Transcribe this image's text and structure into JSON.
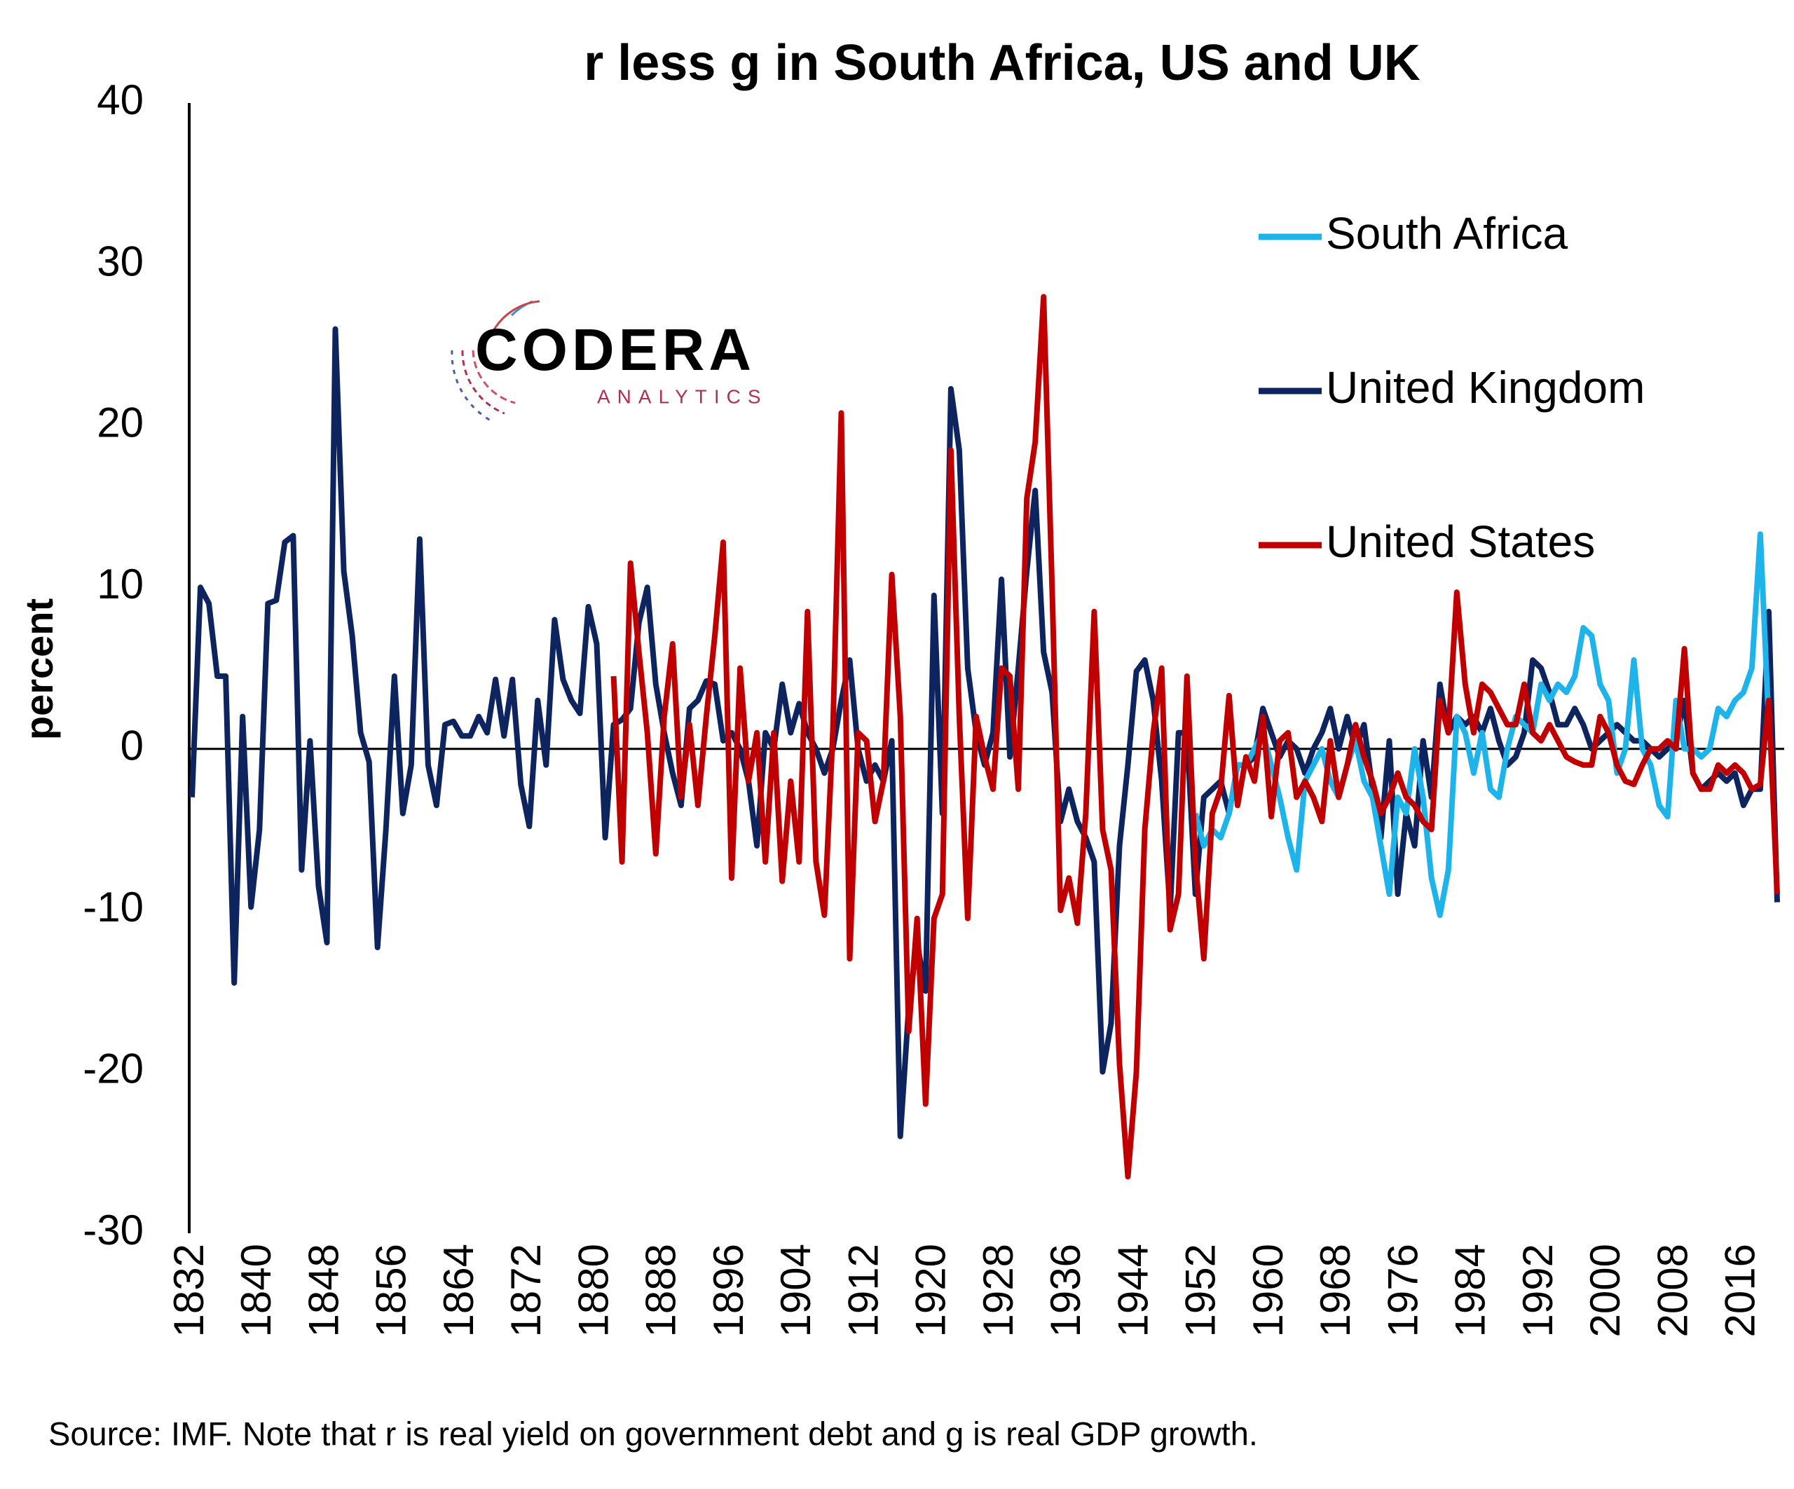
{
  "chart_data": {
    "type": "line",
    "title": "r less g in South Africa, US and UK",
    "y_label": "percent",
    "source": "Source: IMF. Note that r is real yield on government debt and g is real GDP growth.",
    "logo_text": "CODERA",
    "logo_subtext": "ANALYTICS",
    "legend": "top-right",
    "xlim": [
      1832,
      2020
    ],
    "ylim": [
      -30,
      40
    ],
    "yticks": [
      -30,
      -20,
      -10,
      0,
      10,
      20,
      30,
      40
    ],
    "xticks": [
      1832,
      1840,
      1848,
      1856,
      1864,
      1872,
      1880,
      1888,
      1896,
      1904,
      1912,
      1920,
      1928,
      1936,
      1944,
      1952,
      1960,
      1968,
      1976,
      1984,
      1992,
      2000,
      2008,
      2016
    ],
    "x": [
      1832,
      1833,
      1834,
      1835,
      1836,
      1837,
      1838,
      1839,
      1840,
      1841,
      1842,
      1843,
      1844,
      1845,
      1846,
      1847,
      1848,
      1849,
      1850,
      1851,
      1852,
      1853,
      1854,
      1855,
      1856,
      1857,
      1858,
      1859,
      1860,
      1861,
      1862,
      1863,
      1864,
      1865,
      1866,
      1867,
      1868,
      1869,
      1870,
      1871,
      1872,
      1873,
      1874,
      1875,
      1876,
      1877,
      1878,
      1879,
      1880,
      1881,
      1882,
      1883,
      1884,
      1885,
      1886,
      1887,
      1888,
      1889,
      1890,
      1891,
      1892,
      1893,
      1894,
      1895,
      1896,
      1897,
      1898,
      1899,
      1900,
      1901,
      1902,
      1903,
      1904,
      1905,
      1906,
      1907,
      1908,
      1909,
      1910,
      1911,
      1912,
      1913,
      1914,
      1915,
      1916,
      1917,
      1918,
      1919,
      1920,
      1921,
      1922,
      1923,
      1924,
      1925,
      1926,
      1927,
      1928,
      1929,
      1930,
      1931,
      1932,
      1933,
      1934,
      1935,
      1936,
      1937,
      1938,
      1939,
      1940,
      1941,
      1942,
      1943,
      1944,
      1945,
      1946,
      1947,
      1948,
      1949,
      1950,
      1951,
      1952,
      1953,
      1954,
      1955,
      1956,
      1957,
      1958,
      1959,
      1960,
      1961,
      1962,
      1963,
      1964,
      1965,
      1966,
      1967,
      1968,
      1969,
      1970,
      1971,
      1972,
      1973,
      1974,
      1975,
      1976,
      1977,
      1978,
      1979,
      1980,
      1981,
      1982,
      1983,
      1984,
      1985,
      1986,
      1987,
      1988,
      1989,
      1990,
      1991,
      1992,
      1993,
      1994,
      1995,
      1996,
      1997,
      1998,
      1999,
      2000,
      2001,
      2002,
      2003,
      2004,
      2005,
      2006,
      2007,
      2008,
      2009,
      2010,
      2011,
      2012,
      2013,
      2014,
      2015,
      2016,
      2017,
      2018,
      2019,
      2020
    ],
    "series": [
      {
        "name": "South Africa",
        "color": "#1eb4ea",
        "values": [
          null,
          null,
          null,
          null,
          null,
          null,
          null,
          null,
          null,
          null,
          null,
          null,
          null,
          null,
          null,
          null,
          null,
          null,
          null,
          null,
          null,
          null,
          null,
          null,
          null,
          null,
          null,
          null,
          null,
          null,
          null,
          null,
          null,
          null,
          null,
          null,
          null,
          null,
          null,
          null,
          null,
          null,
          null,
          null,
          null,
          null,
          null,
          null,
          null,
          null,
          null,
          null,
          null,
          null,
          null,
          null,
          null,
          null,
          null,
          null,
          null,
          null,
          null,
          null,
          null,
          null,
          null,
          null,
          null,
          null,
          null,
          null,
          null,
          null,
          null,
          null,
          null,
          null,
          null,
          null,
          null,
          null,
          null,
          null,
          null,
          null,
          null,
          null,
          null,
          null,
          null,
          null,
          null,
          null,
          null,
          null,
          null,
          null,
          null,
          null,
          null,
          null,
          null,
          null,
          null,
          null,
          null,
          null,
          null,
          null,
          null,
          null,
          null,
          null,
          null,
          null,
          null,
          null,
          null,
          -4,
          -6,
          -5,
          -5.5,
          -4,
          -1,
          -1,
          0,
          1,
          -1,
          -3,
          -5.5,
          -7.5,
          -2,
          -1,
          0,
          -2,
          -3,
          -1,
          0.5,
          -2,
          -3,
          -6,
          -9,
          -3,
          -4,
          0,
          -3,
          -8,
          -10.3,
          -7.5,
          2,
          1,
          -1.5,
          1,
          -2.5,
          -3,
          0,
          2,
          1.5,
          1,
          4,
          3,
          4,
          3.5,
          4.5,
          7.5,
          7,
          4,
          3,
          -1.5,
          0,
          5.5,
          0,
          -1,
          -3.5,
          -4.2,
          3,
          0,
          0,
          -0.5,
          0,
          2.5,
          2,
          3,
          3.5,
          5,
          13.3,
          1.5,
          null
        ]
      },
      {
        "name": "United Kingdom",
        "color": "#0d245e",
        "values": [
          -3,
          10,
          9,
          4.5,
          4.5,
          -14.5,
          2,
          -9.8,
          -5,
          9,
          9.2,
          12.8,
          13.2,
          -7.5,
          0.5,
          -8.5,
          -12,
          26,
          11,
          7,
          1,
          -0.8,
          -12.3,
          -5,
          4.5,
          -4,
          -1,
          13,
          -1,
          -3.5,
          1.5,
          1.7,
          0.8,
          0.8,
          2,
          1,
          4.3,
          0.8,
          4.3,
          -2.2,
          -4.8,
          3,
          -1,
          8,
          4.3,
          3,
          2.2,
          8.8,
          6.5,
          -5.5,
          1.5,
          1.8,
          2.5,
          7.8,
          10,
          4,
          1,
          -1.5,
          -3.5,
          2.5,
          3,
          4.2,
          4,
          0.5,
          1,
          0,
          -2,
          -6,
          1,
          0,
          4,
          1,
          2.8,
          1,
          0,
          -1.5,
          0,
          3,
          5.5,
          0,
          -2,
          -1,
          -2,
          0.5,
          -24,
          -16,
          -12,
          -15,
          9.5,
          -4,
          22.3,
          18.5,
          5,
          1,
          -1,
          1,
          10.5,
          -0.5,
          5,
          11,
          16,
          6,
          3.5,
          -4.5,
          -2.5,
          -4.5,
          -5.5,
          -7,
          -20,
          -17,
          -6,
          -1,
          4.8,
          5.5,
          3,
          -2,
          -10,
          1,
          1,
          -9,
          -3,
          -2.5,
          -2,
          -4,
          -1,
          -1,
          -0.5,
          2.5,
          1,
          -0.5,
          0.5,
          0,
          -1.5,
          0,
          1,
          2.5,
          0,
          2,
          0,
          1.5,
          -2.5,
          -5.5,
          0.5,
          -9,
          -4,
          -6,
          0.5,
          -3,
          4,
          1,
          2,
          1.5,
          2,
          1,
          2.5,
          0.5,
          -1,
          -0.5,
          1,
          5.5,
          5,
          3.5,
          1.5,
          1.5,
          2.5,
          1.5,
          0,
          0.5,
          1,
          1.5,
          1,
          0.5,
          0.5,
          0,
          -0.5,
          0,
          0.5,
          3,
          -1.5,
          -2.5,
          -2,
          -1.5,
          -2,
          -1.5,
          -3.5,
          -2.5,
          -2.5,
          8.5,
          -9.5
        ]
      },
      {
        "name": "United States",
        "color": "#c00000",
        "values": [
          null,
          null,
          null,
          null,
          null,
          null,
          null,
          null,
          null,
          null,
          null,
          null,
          null,
          null,
          null,
          null,
          null,
          null,
          null,
          null,
          null,
          null,
          null,
          null,
          null,
          null,
          null,
          null,
          null,
          null,
          null,
          null,
          null,
          null,
          null,
          null,
          null,
          null,
          null,
          null,
          null,
          null,
          null,
          null,
          null,
          null,
          null,
          null,
          null,
          null,
          4.5,
          -7,
          11.5,
          6,
          1,
          -6.5,
          2,
          6.5,
          -3,
          1.5,
          -3.5,
          2,
          7,
          12.8,
          -8,
          5,
          -2,
          1,
          -7,
          1,
          -8.2,
          -2,
          -7,
          8.5,
          -7,
          -10.3,
          1,
          20.8,
          -13,
          1,
          0.5,
          -4.5,
          -2,
          10.8,
          2,
          -17.5,
          -10.5,
          -22,
          -10.5,
          -9,
          18.5,
          2,
          -10.5,
          2,
          -0.5,
          -2.5,
          5,
          4.5,
          -2.5,
          15.5,
          19,
          28,
          10,
          -10,
          -8,
          -10.8,
          -4,
          8.5,
          -5,
          -7.5,
          -19.5,
          -26.5,
          -20,
          -5,
          1,
          5,
          -11.2,
          -9,
          4.5,
          -7,
          -13,
          -4,
          -2.5,
          3.3,
          -3.5,
          -0.5,
          -2,
          2,
          -4.2,
          0.5,
          1,
          -3,
          -2,
          -3,
          -4.5,
          0.5,
          -3,
          -1,
          1.5,
          -0.5,
          -2,
          -4,
          -3,
          -1.5,
          -3,
          -3.5,
          -4.5,
          -5,
          3,
          1,
          9.7,
          4,
          1,
          4,
          3.5,
          2.5,
          1.5,
          1.5,
          4,
          1,
          0.5,
          1.5,
          0.5,
          -0.5,
          -0.8,
          -1,
          -1,
          2,
          1,
          -1,
          -2,
          -2.2,
          -1,
          0,
          0,
          0.5,
          0,
          6.2,
          -1.5,
          -2.5,
          -2.5,
          -1,
          -1.5,
          -1,
          -1.5,
          -2.5,
          -2.2,
          3,
          -9
        ]
      }
    ]
  }
}
